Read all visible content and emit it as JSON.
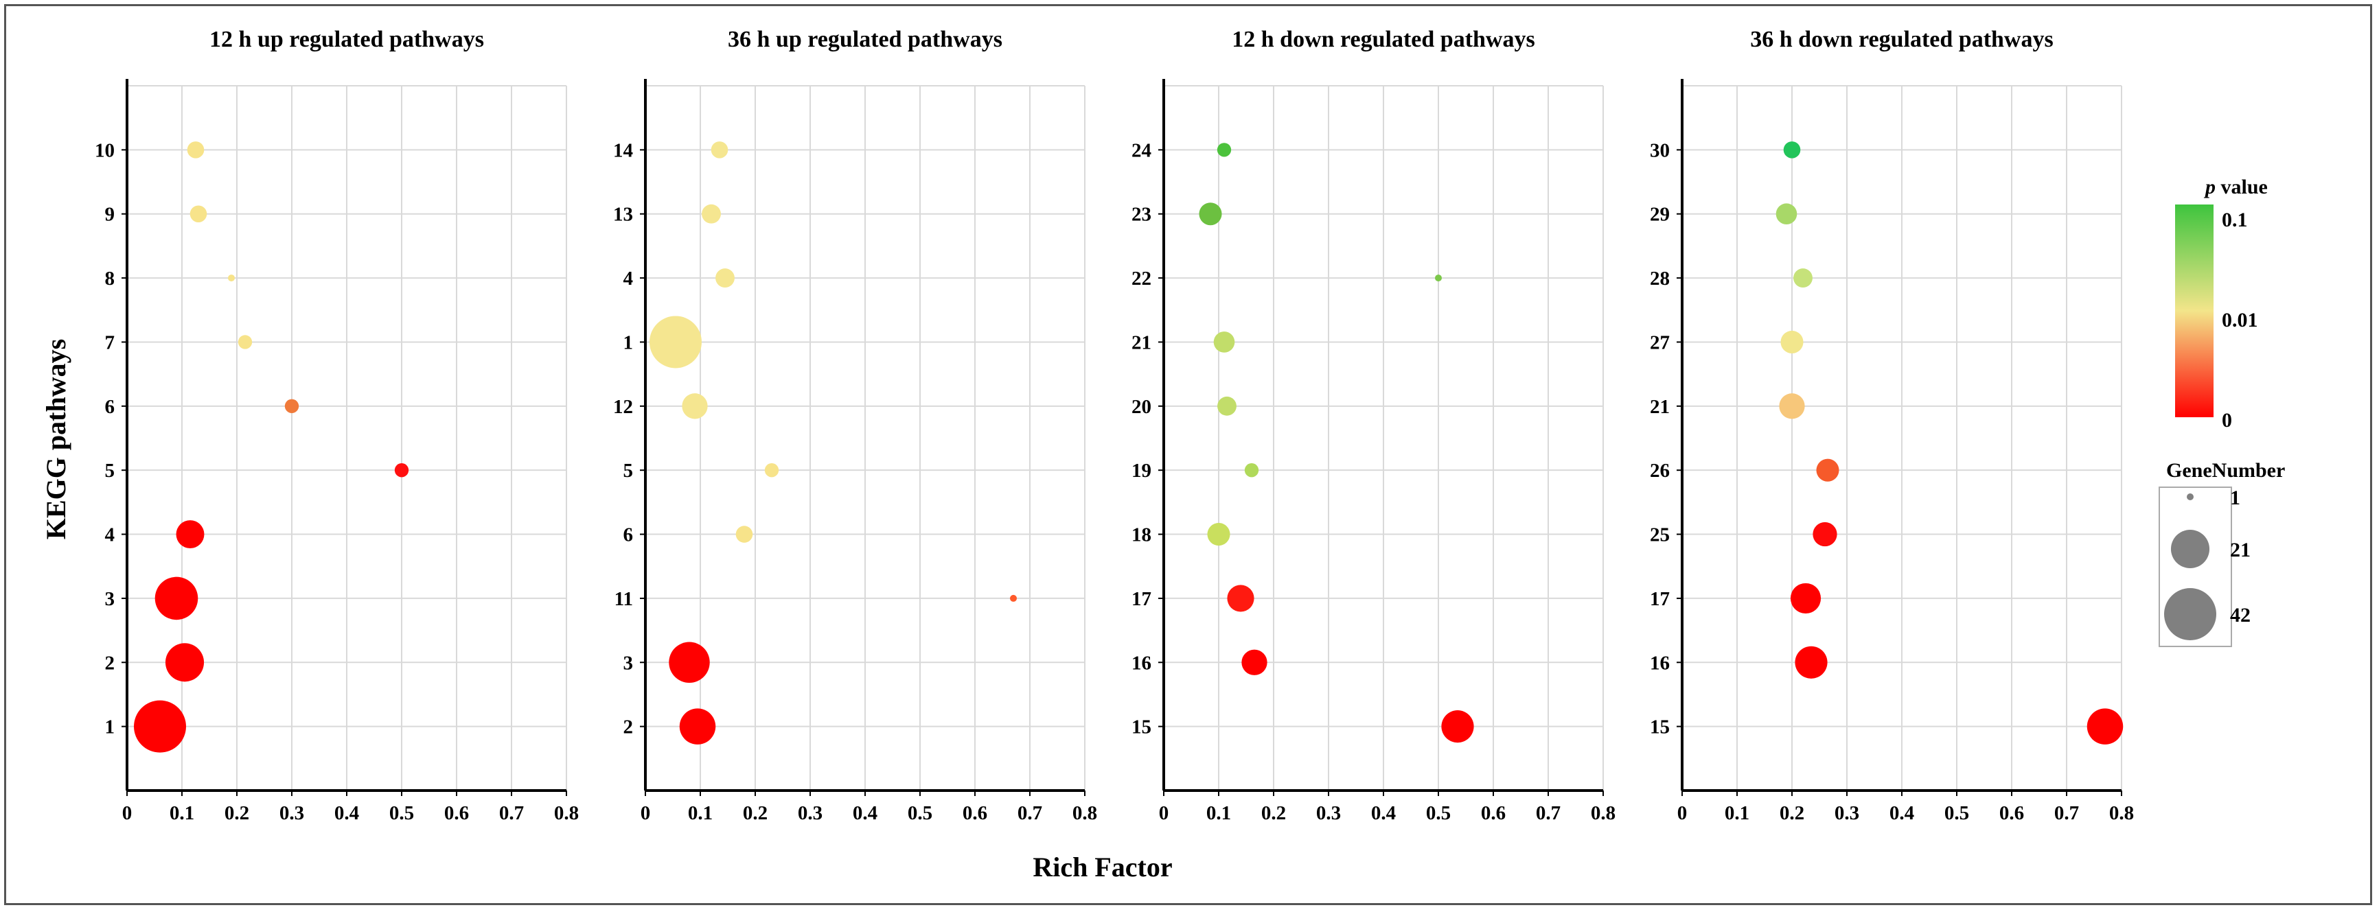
{
  "chart_data": {
    "type": "scatter",
    "subtype": "bubble",
    "xlabel": "Rich Factor",
    "ylabel": "KEGG pathways",
    "xlim": [
      0,
      0.8
    ],
    "x_ticks": [
      "0",
      "0.1",
      "0.2",
      "0.3",
      "0.4",
      "0.5",
      "0.6",
      "0.7",
      "0.8"
    ],
    "grid": true,
    "panels": [
      {
        "title": "12 h up regulated pathways",
        "categories": [
          "1",
          "2",
          "3",
          "4",
          "5",
          "6",
          "7",
          "8",
          "9",
          "10"
        ],
        "points": [
          {
            "pathway": "1",
            "rich_factor": 0.06,
            "gene_number": 42,
            "color": "#ff0000"
          },
          {
            "pathway": "2",
            "rich_factor": 0.105,
            "gene_number": 21,
            "color": "#ff0000"
          },
          {
            "pathway": "3",
            "rich_factor": 0.09,
            "gene_number": 27,
            "color": "#ff0000"
          },
          {
            "pathway": "4",
            "rich_factor": 0.115,
            "gene_number": 10,
            "color": "#ff0000"
          },
          {
            "pathway": "5",
            "rich_factor": 0.5,
            "gene_number": 2,
            "color": "#ff1010"
          },
          {
            "pathway": "6",
            "rich_factor": 0.3,
            "gene_number": 2,
            "color": "#f07a3a"
          },
          {
            "pathway": "7",
            "rich_factor": 0.215,
            "gene_number": 2,
            "color": "#f7e38a"
          },
          {
            "pathway": "8",
            "rich_factor": 0.19,
            "gene_number": 1,
            "color": "#f7e38a"
          },
          {
            "pathway": "9",
            "rich_factor": 0.13,
            "gene_number": 3,
            "color": "#f7e38a"
          },
          {
            "pathway": "10",
            "rich_factor": 0.125,
            "gene_number": 3,
            "color": "#f7e38a"
          }
        ]
      },
      {
        "title": "36 h up regulated pathways",
        "categories": [
          "2",
          "3",
          "11",
          "6",
          "5",
          "12",
          "1",
          "4",
          "13",
          "14"
        ],
        "points": [
          {
            "pathway": "2",
            "rich_factor": 0.095,
            "gene_number": 18,
            "color": "#ff0000"
          },
          {
            "pathway": "3",
            "rich_factor": 0.08,
            "gene_number": 24,
            "color": "#ff0000"
          },
          {
            "pathway": "11",
            "rich_factor": 0.67,
            "gene_number": 1,
            "color": "#ff5a2a"
          },
          {
            "pathway": "6",
            "rich_factor": 0.18,
            "gene_number": 3,
            "color": "#f7e38a"
          },
          {
            "pathway": "5",
            "rich_factor": 0.23,
            "gene_number": 2,
            "color": "#f7e38a"
          },
          {
            "pathway": "12",
            "rich_factor": 0.09,
            "gene_number": 8,
            "color": "#f5e690"
          },
          {
            "pathway": "1",
            "rich_factor": 0.055,
            "gene_number": 42,
            "color": "#f5e690"
          },
          {
            "pathway": "4",
            "rich_factor": 0.145,
            "gene_number": 4,
            "color": "#f5e690"
          },
          {
            "pathway": "13",
            "rich_factor": 0.12,
            "gene_number": 4,
            "color": "#f5e690"
          },
          {
            "pathway": "14",
            "rich_factor": 0.135,
            "gene_number": 3,
            "color": "#f5e690"
          }
        ]
      },
      {
        "title": "12 h down regulated pathways",
        "categories": [
          "15",
          "16",
          "17",
          "18",
          "19",
          "20",
          "21",
          "22",
          "23",
          "24"
        ],
        "points": [
          {
            "pathway": "15",
            "rich_factor": 0.535,
            "gene_number": 14,
            "color": "#ff0000"
          },
          {
            "pathway": "16",
            "rich_factor": 0.165,
            "gene_number": 8,
            "color": "#ff0000"
          },
          {
            "pathway": "17",
            "rich_factor": 0.14,
            "gene_number": 9,
            "color": "#ff1a10"
          },
          {
            "pathway": "18",
            "rich_factor": 0.1,
            "gene_number": 6,
            "color": "#c9df5e"
          },
          {
            "pathway": "19",
            "rich_factor": 0.16,
            "gene_number": 2,
            "color": "#b0d95a"
          },
          {
            "pathway": "20",
            "rich_factor": 0.115,
            "gene_number": 4,
            "color": "#c2dd6a"
          },
          {
            "pathway": "21",
            "rich_factor": 0.11,
            "gene_number": 5,
            "color": "#c2dd6a"
          },
          {
            "pathway": "22",
            "rich_factor": 0.5,
            "gene_number": 1,
            "color": "#7cc84a"
          },
          {
            "pathway": "23",
            "rich_factor": 0.085,
            "gene_number": 6,
            "color": "#6cc040"
          },
          {
            "pathway": "24",
            "rich_factor": 0.11,
            "gene_number": 2,
            "color": "#4cc23c"
          }
        ]
      },
      {
        "title": "36 h down regulated pathways",
        "categories": [
          "15",
          "16",
          "17",
          "25",
          "26",
          "21",
          "27",
          "28",
          "29",
          "30"
        ],
        "points": [
          {
            "pathway": "15",
            "rich_factor": 0.77,
            "gene_number": 18,
            "color": "#ff0000"
          },
          {
            "pathway": "16",
            "rich_factor": 0.235,
            "gene_number": 14,
            "color": "#ff0000"
          },
          {
            "pathway": "17",
            "rich_factor": 0.225,
            "gene_number": 12,
            "color": "#ff0000"
          },
          {
            "pathway": "25",
            "rich_factor": 0.26,
            "gene_number": 7,
            "color": "#ff0a0a"
          },
          {
            "pathway": "26",
            "rich_factor": 0.265,
            "gene_number": 6,
            "color": "#f65a2a"
          },
          {
            "pathway": "21",
            "rich_factor": 0.2,
            "gene_number": 8,
            "color": "#f7c77a"
          },
          {
            "pathway": "27",
            "rich_factor": 0.2,
            "gene_number": 6,
            "color": "#f2e68c"
          },
          {
            "pathway": "28",
            "rich_factor": 0.22,
            "gene_number": 4,
            "color": "#c6e27a"
          },
          {
            "pathway": "29",
            "rich_factor": 0.19,
            "gene_number": 5,
            "color": "#a8d868"
          },
          {
            "pathway": "30",
            "rich_factor": 0.2,
            "gene_number": 3,
            "color": "#22c45a"
          }
        ]
      }
    ],
    "color_legend": {
      "title_italic": "p",
      "title_rest": " value",
      "labels": [
        "0.1",
        "0.01",
        "0"
      ],
      "stops": [
        "#3ec43e",
        "#f3e58a",
        "#ff0000"
      ]
    },
    "size_legend": {
      "title": "GeneNumber",
      "entries": [
        {
          "label": "1",
          "value": 1
        },
        {
          "label": "21",
          "value": 21
        },
        {
          "label": "42",
          "value": 42
        }
      ]
    }
  }
}
